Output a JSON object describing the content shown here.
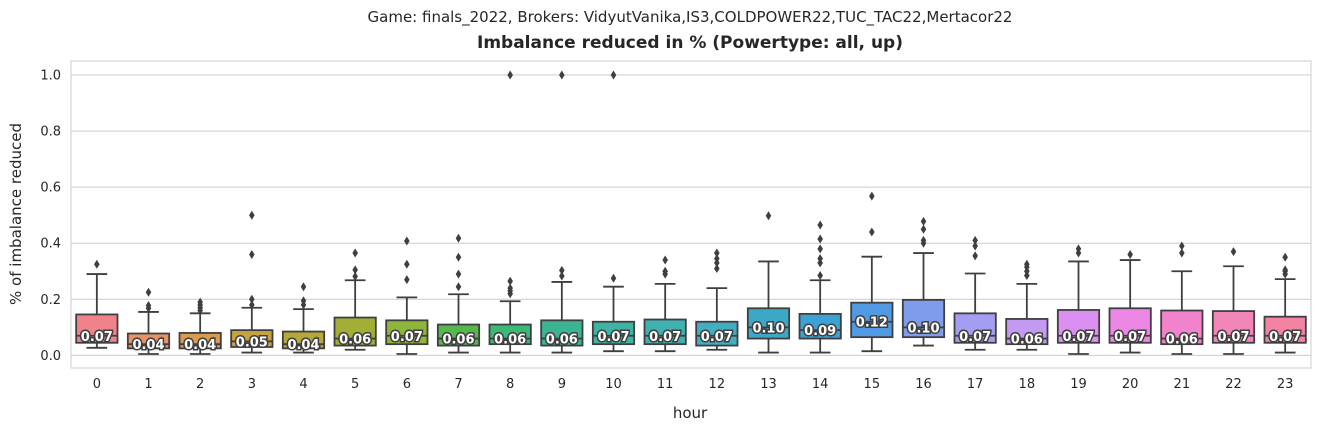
{
  "chart_data": {
    "type": "box",
    "suptitle": "Game: finals_2022, Brokers: VidyutVanika,IS3,COLDPOWER22,TUC_TAC22,Mertacor22",
    "title": "Imbalance reduced in % (Powertype: all, up)",
    "xlabel": "hour",
    "ylabel": "% of imbalance reduced",
    "ylim": [
      -0.045,
      1.05
    ],
    "yticks": [
      0.0,
      0.2,
      0.4,
      0.6,
      0.8,
      1.0
    ],
    "ytick_labels": [
      "0.0",
      "0.2",
      "0.4",
      "0.6",
      "0.8",
      "1.0"
    ],
    "grid": true,
    "categories": [
      "0",
      "1",
      "2",
      "3",
      "4",
      "5",
      "6",
      "7",
      "8",
      "9",
      "10",
      "11",
      "12",
      "13",
      "14",
      "15",
      "16",
      "17",
      "18",
      "19",
      "20",
      "21",
      "22",
      "23"
    ],
    "colors": [
      "#f0828c",
      "#e8926a",
      "#d99b4e",
      "#c8a23c",
      "#b5a93a",
      "#a3ae36",
      "#8db63a",
      "#55b84c",
      "#3aba76",
      "#3bb491",
      "#3db3a4",
      "#3fb1b1",
      "#42aec0",
      "#3ca8c8",
      "#3aa2d5",
      "#5199e3",
      "#7f9cec",
      "#a39ef0",
      "#c29af2",
      "#db8ff0",
      "#ec86e4",
      "#f182cd",
      "#f286b8",
      "#f283a2"
    ],
    "boxes": [
      {
        "hour": "0",
        "whislo": 0.027,
        "q1": 0.045,
        "median": 0.07,
        "q3": 0.146,
        "whishi": 0.29,
        "fliers": [
          0.325
        ],
        "label": "0.07"
      },
      {
        "hour": "1",
        "whislo": 0.005,
        "q1": 0.025,
        "median": 0.04,
        "q3": 0.078,
        "whishi": 0.155,
        "fliers": [
          0.168,
          0.178,
          0.225
        ],
        "label": "0.04"
      },
      {
        "hour": "2",
        "whislo": 0.005,
        "q1": 0.025,
        "median": 0.04,
        "q3": 0.08,
        "whishi": 0.15,
        "fliers": [
          0.16,
          0.17,
          0.18,
          0.19
        ],
        "label": "0.04"
      },
      {
        "hour": "3",
        "whislo": 0.01,
        "q1": 0.03,
        "median": 0.05,
        "q3": 0.09,
        "whishi": 0.17,
        "fliers": [
          0.18,
          0.2,
          0.36,
          0.5
        ],
        "label": "0.05"
      },
      {
        "hour": "4",
        "whislo": 0.01,
        "q1": 0.025,
        "median": 0.04,
        "q3": 0.085,
        "whishi": 0.165,
        "fliers": [
          0.18,
          0.195,
          0.245
        ],
        "label": "0.04"
      },
      {
        "hour": "5",
        "whislo": 0.02,
        "q1": 0.035,
        "median": 0.06,
        "q3": 0.135,
        "whishi": 0.268,
        "fliers": [
          0.282,
          0.305,
          0.365
        ],
        "label": "0.06"
      },
      {
        "hour": "6",
        "whislo": 0.005,
        "q1": 0.04,
        "median": 0.07,
        "q3": 0.125,
        "whishi": 0.207,
        "fliers": [
          0.27,
          0.325,
          0.408
        ],
        "label": "0.07"
      },
      {
        "hour": "7",
        "whislo": 0.01,
        "q1": 0.035,
        "median": 0.06,
        "q3": 0.11,
        "whishi": 0.218,
        "fliers": [
          0.245,
          0.29,
          0.35,
          0.418
        ],
        "label": "0.06"
      },
      {
        "hour": "8",
        "whislo": 0.01,
        "q1": 0.04,
        "median": 0.06,
        "q3": 0.11,
        "whishi": 0.193,
        "fliers": [
          0.22,
          0.23,
          0.24,
          0.265,
          1.0
        ],
        "label": "0.06"
      },
      {
        "hour": "9",
        "whislo": 0.01,
        "q1": 0.035,
        "median": 0.06,
        "q3": 0.125,
        "whishi": 0.262,
        "fliers": [
          0.283,
          0.303,
          1.0
        ],
        "label": "0.06"
      },
      {
        "hour": "10",
        "whislo": 0.015,
        "q1": 0.04,
        "median": 0.07,
        "q3": 0.12,
        "whishi": 0.245,
        "fliers": [
          0.275,
          1.0
        ],
        "label": "0.07"
      },
      {
        "hour": "11",
        "whislo": 0.015,
        "q1": 0.04,
        "median": 0.07,
        "q3": 0.128,
        "whishi": 0.255,
        "fliers": [
          0.29,
          0.3,
          0.34
        ],
        "label": "0.07"
      },
      {
        "hour": "12",
        "whislo": 0.02,
        "q1": 0.035,
        "median": 0.07,
        "q3": 0.12,
        "whishi": 0.24,
        "fliers": [
          0.31,
          0.33,
          0.345,
          0.365
        ],
        "label": "0.07"
      },
      {
        "hour": "13",
        "whislo": 0.01,
        "q1": 0.06,
        "median": 0.1,
        "q3": 0.168,
        "whishi": 0.335,
        "fliers": [
          0.498
        ],
        "label": "0.10"
      },
      {
        "hour": "14",
        "whislo": 0.01,
        "q1": 0.06,
        "median": 0.09,
        "q3": 0.148,
        "whishi": 0.268,
        "fliers": [
          0.285,
          0.33,
          0.345,
          0.38,
          0.415,
          0.465
        ],
        "label": "0.09"
      },
      {
        "hour": "15",
        "whislo": 0.015,
        "q1": 0.065,
        "median": 0.12,
        "q3": 0.188,
        "whishi": 0.352,
        "fliers": [
          0.44,
          0.568
        ],
        "label": "0.12"
      },
      {
        "hour": "16",
        "whislo": 0.035,
        "q1": 0.065,
        "median": 0.1,
        "q3": 0.198,
        "whishi": 0.365,
        "fliers": [
          0.4,
          0.41,
          0.45,
          0.478
        ],
        "label": "0.10"
      },
      {
        "hour": "17",
        "whislo": 0.02,
        "q1": 0.045,
        "median": 0.07,
        "q3": 0.15,
        "whishi": 0.292,
        "fliers": [
          0.355,
          0.39,
          0.41
        ],
        "label": "0.07"
      },
      {
        "hour": "18",
        "whislo": 0.02,
        "q1": 0.04,
        "median": 0.06,
        "q3": 0.13,
        "whishi": 0.255,
        "fliers": [
          0.285,
          0.3,
          0.315,
          0.325
        ],
        "label": "0.06"
      },
      {
        "hour": "19",
        "whislo": 0.005,
        "q1": 0.045,
        "median": 0.07,
        "q3": 0.162,
        "whishi": 0.335,
        "fliers": [
          0.365,
          0.38
        ],
        "label": "0.07"
      },
      {
        "hour": "20",
        "whislo": 0.01,
        "q1": 0.045,
        "median": 0.07,
        "q3": 0.168,
        "whishi": 0.34,
        "fliers": [
          0.36
        ],
        "label": "0.07"
      },
      {
        "hour": "21",
        "whislo": 0.005,
        "q1": 0.04,
        "median": 0.06,
        "q3": 0.16,
        "whishi": 0.3,
        "fliers": [
          0.365,
          0.39
        ],
        "label": "0.06"
      },
      {
        "hour": "22",
        "whislo": 0.005,
        "q1": 0.045,
        "median": 0.07,
        "q3": 0.158,
        "whishi": 0.318,
        "fliers": [
          0.37
        ],
        "label": "0.07"
      },
      {
        "hour": "23",
        "whislo": 0.01,
        "q1": 0.045,
        "median": 0.07,
        "q3": 0.138,
        "whishi": 0.272,
        "fliers": [
          0.29,
          0.3,
          0.305,
          0.35
        ],
        "label": "0.07"
      }
    ]
  }
}
